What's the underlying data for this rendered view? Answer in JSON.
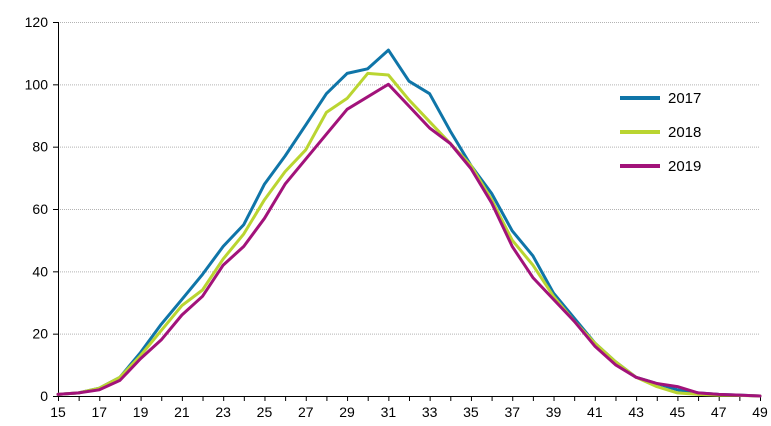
{
  "chart_data": {
    "type": "line",
    "title": "",
    "xlabel": "",
    "ylabel": "",
    "x": [
      15,
      16,
      17,
      18,
      19,
      20,
      21,
      22,
      23,
      24,
      25,
      26,
      27,
      28,
      29,
      30,
      31,
      32,
      33,
      34,
      35,
      36,
      37,
      38,
      39,
      40,
      41,
      42,
      43,
      44,
      45,
      46,
      47,
      48,
      49
    ],
    "xlim": [
      15,
      49
    ],
    "ylim": [
      0,
      120
    ],
    "x_ticks": [
      15,
      17,
      19,
      21,
      23,
      25,
      27,
      29,
      31,
      33,
      35,
      37,
      39,
      41,
      43,
      45,
      47,
      49
    ],
    "y_ticks": [
      0,
      20,
      40,
      60,
      80,
      100,
      120
    ],
    "grid": "horizontal",
    "legend_position": "right",
    "series": [
      {
        "name": "2017",
        "color": "#0f75a8",
        "values": [
          0.5,
          1,
          2.5,
          6,
          14,
          23,
          31,
          39,
          48,
          55,
          68,
          77,
          87,
          97,
          103.5,
          105,
          111,
          101,
          97,
          85,
          74,
          65,
          53,
          45,
          33,
          25,
          17,
          11,
          6,
          4,
          2,
          1,
          0.5,
          0.3,
          0
        ]
      },
      {
        "name": "2018",
        "color": "#bad531",
        "values": [
          0.5,
          1,
          2.5,
          6,
          13,
          21,
          29,
          34,
          44,
          52,
          63,
          72,
          79,
          91,
          95.5,
          103.5,
          103,
          95,
          88,
          81,
          74,
          63,
          50,
          42,
          32,
          24,
          17,
          11,
          6,
          3,
          1,
          0.5,
          0.3,
          0.2,
          0
        ]
      },
      {
        "name": "2019",
        "color": "#a2127a",
        "values": [
          0.5,
          1,
          2,
          5,
          12,
          18,
          26,
          32,
          42,
          48,
          57,
          68,
          76,
          84,
          92,
          96,
          100,
          93,
          86,
          81,
          73,
          62,
          48,
          38,
          31,
          24,
          16,
          10,
          6,
          4,
          3,
          1,
          0.5,
          0.3,
          0
        ]
      }
    ]
  }
}
